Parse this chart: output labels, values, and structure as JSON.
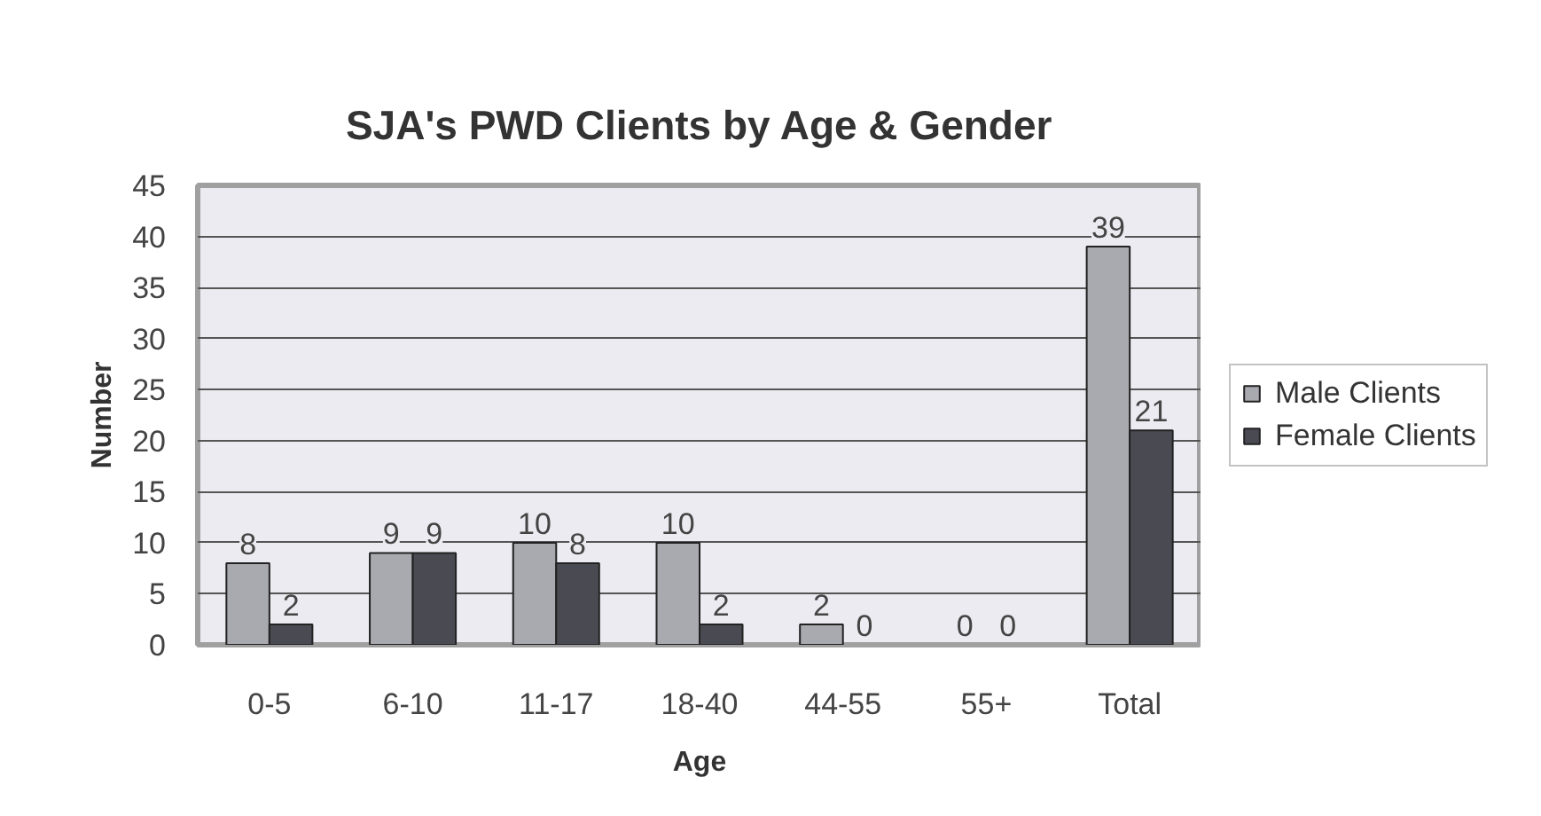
{
  "chart_data": {
    "type": "bar",
    "title": "SJA's PWD Clients by Age & Gender",
    "xlabel": "Age",
    "ylabel": "Number",
    "categories": [
      "0-5",
      "6-10",
      "11-17",
      "18-40",
      "44-55",
      "55+",
      "Total"
    ],
    "series": [
      {
        "name": "Male Clients",
        "color": "#a9a9b0",
        "values": [
          8,
          9,
          10,
          10,
          2,
          0,
          39
        ]
      },
      {
        "name": "Female Clients",
        "color": "#4a4a52",
        "values": [
          2,
          9,
          8,
          2,
          0,
          0,
          21
        ]
      }
    ],
    "ylim": [
      0,
      45
    ],
    "yticks": [
      0,
      5,
      10,
      15,
      20,
      25,
      30,
      35,
      40,
      45
    ],
    "grid": "y",
    "legend": "right",
    "data_labels": true
  }
}
